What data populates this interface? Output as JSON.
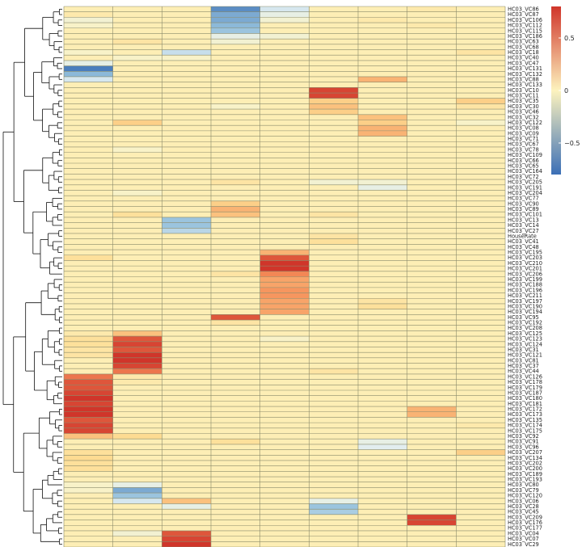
{
  "chart_data": {
    "type": "heatmap",
    "columns": 9,
    "rows": [
      "HC03_VC86",
      "HC03_VC87",
      "HC03_VC106",
      "HC03_VC112",
      "HC03_VC115",
      "HC03_VC186",
      "HC03_VC63",
      "HC03_VC68",
      "HC03_VC18",
      "HC03_VC40",
      "HC03_VC47",
      "HC03_VC131",
      "HC03_VC132",
      "HC03_VC88",
      "HC03_VC133",
      "HC03_VC10",
      "HC03_VC11",
      "HC03_VC35",
      "HC03_VC30",
      "HC03_VC46",
      "HC03_VC32",
      "HC03_VC122",
      "HC03_VC08",
      "HC03_VC09",
      "HC03_VC71",
      "HC03_VC67",
      "HC03_VC78",
      "HC03_VC109",
      "HC03_VC66",
      "HC03_VC65",
      "HC03_VC164",
      "HC03_VC72",
      "HC03_VC205",
      "HC03_VC191",
      "HC03_VC204",
      "HC03_VC77",
      "HC03_VC90",
      "HC03_VC89",
      "HC03_VC101",
      "HC03_VC13",
      "HC03_VC14",
      "HC03_VC27",
      "HouseRate",
      "HC03_VC41",
      "HC03_VC48",
      "HC03_VC195",
      "HC03_VC203",
      "HC03_VC210",
      "HC03_VC201",
      "HC03_VC206",
      "HC03_VC199",
      "HC03_VC188",
      "HC03_VC196",
      "HC03_VC211",
      "HC03_VC197",
      "HC03_VC190",
      "HC03_VC194",
      "HC03_VC95",
      "HC03_VC192",
      "HC03_VC208",
      "HC03_VC125",
      "HC03_VC123",
      "HC03_VC124",
      "HC03_VC31",
      "HC03_VC121",
      "HC03_VC81",
      "HC03_VC37",
      "HC03_VC44",
      "HC03_VC126",
      "HC03_VC178",
      "HC03_VC179",
      "HC03_VC187",
      "HC03_VC180",
      "HC03_VC181",
      "HC03_VC172",
      "HC03_VC173",
      "HC03_VC135",
      "HC03_VC174",
      "HC03_VC175",
      "HC03_VC92",
      "HC03_VC91",
      "HC03_VC96",
      "HC03_VC207",
      "HC03_VC134",
      "HC03_VC202",
      "HC03_VC200",
      "HC03_VC189",
      "HC03_VC193",
      "HC03_VC80",
      "HC03_VC79",
      "HC03_VC120",
      "HC03_VC06",
      "HC03_VC28",
      "HC03_VC45",
      "HC03_VC209",
      "HC03_VC176",
      "HC03_VC177",
      "HC03_VC04",
      "HC03_VC07",
      "HC03_VC29"
    ],
    "values": [
      [
        0.05,
        0.05,
        0.05,
        -0.7,
        -0.3,
        0.05,
        0.05,
        0.1,
        0.05
      ],
      [
        0.1,
        0.05,
        0.05,
        -0.6,
        -0.2,
        0.05,
        0.05,
        0.05,
        0.05
      ],
      [
        -0.1,
        0.05,
        0.05,
        -0.6,
        -0.1,
        0.05,
        0.1,
        0.05,
        0.05
      ],
      [
        -0.05,
        0.05,
        0.05,
        -0.55,
        0.05,
        0.05,
        0.05,
        0.1,
        0.05
      ],
      [
        0.05,
        0.05,
        0.05,
        -0.5,
        0.05,
        0.05,
        0.05,
        0.05,
        0.05
      ],
      [
        0.05,
        0.05,
        0.05,
        -0.2,
        -0.1,
        0.05,
        0.05,
        0.05,
        0.05
      ],
      [
        0.05,
        0.15,
        0.05,
        -0.1,
        0.05,
        0.05,
        0.05,
        0.05,
        0.05
      ],
      [
        0.05,
        0.05,
        0.05,
        0.05,
        0.05,
        0.05,
        0.05,
        0.05,
        0.05
      ],
      [
        -0.05,
        0.05,
        -0.35,
        0.05,
        0.05,
        0.05,
        0.05,
        0.05,
        0.15
      ],
      [
        0.05,
        -0.05,
        -0.05,
        0.05,
        0.05,
        0.05,
        0.05,
        0.05,
        0.05
      ],
      [
        -0.2,
        0.05,
        0.05,
        0.05,
        0.05,
        0.05,
        0.05,
        0.05,
        0.05
      ],
      [
        -0.75,
        0.05,
        0.05,
        0.05,
        0.05,
        0.05,
        0.05,
        0.05,
        0.05
      ],
      [
        -0.55,
        0.05,
        0.05,
        0.05,
        0.05,
        0.05,
        0.05,
        0.05,
        0.05
      ],
      [
        -0.3,
        0.05,
        0.05,
        0.05,
        0.05,
        0.05,
        0.4,
        0.05,
        0.05
      ],
      [
        0.05,
        0.05,
        0.05,
        0.05,
        0.05,
        0.05,
        0.05,
        0.05,
        0.05
      ],
      [
        0.05,
        0.05,
        0.05,
        0.05,
        0.05,
        0.75,
        0.05,
        0.05,
        0.05
      ],
      [
        0.05,
        0.05,
        0.05,
        0.05,
        0.05,
        0.75,
        0.05,
        0.05,
        0.05
      ],
      [
        0.05,
        0.05,
        0.05,
        0.05,
        0.05,
        0.3,
        0.05,
        0.05,
        0.3
      ],
      [
        0.05,
        0.05,
        0.05,
        -0.05,
        0.05,
        0.35,
        0.05,
        0.05,
        0.15
      ],
      [
        0.05,
        0.05,
        0.05,
        0.05,
        0.05,
        0.3,
        0.05,
        0.05,
        0.05
      ],
      [
        0.05,
        0.05,
        0.05,
        0.05,
        0.05,
        0.05,
        0.35,
        0.05,
        0.05
      ],
      [
        0.05,
        0.3,
        0.05,
        0.05,
        0.05,
        0.05,
        0.3,
        0.05,
        -0.05
      ],
      [
        0.05,
        0.05,
        0.05,
        0.05,
        0.05,
        0.05,
        0.4,
        0.05,
        0.05
      ],
      [
        0.05,
        0.05,
        0.05,
        0.05,
        0.05,
        0.05,
        0.4,
        0.05,
        0.05
      ],
      [
        0.05,
        0.05,
        0.05,
        0.05,
        0.05,
        0.05,
        0.05,
        0.05,
        0.05
      ],
      [
        0.05,
        0.05,
        0.05,
        0.05,
        0.05,
        0.05,
        0.05,
        0.05,
        0.05
      ],
      [
        0.05,
        -0.05,
        0.05,
        0.05,
        0.05,
        0.05,
        0.05,
        0.05,
        0.05
      ],
      [
        0.05,
        0.05,
        0.05,
        0.05,
        0.05,
        0.05,
        0.05,
        0.05,
        0.05
      ],
      [
        0.05,
        0.05,
        0.05,
        0.05,
        0.05,
        0.05,
        0.05,
        0.05,
        0.05
      ],
      [
        0.05,
        0.05,
        0.05,
        0.05,
        0.05,
        0.05,
        0.05,
        0.05,
        0.05
      ],
      [
        0.05,
        0.05,
        0.05,
        0.05,
        0.05,
        0.05,
        0.05,
        0.05,
        0.05
      ],
      [
        0.05,
        0.05,
        0.05,
        0.05,
        0.05,
        0.05,
        0.05,
        0.05,
        0.05
      ],
      [
        0.05,
        0.05,
        0.05,
        0.15,
        0.05,
        -0.1,
        -0.1,
        0.05,
        0.05
      ],
      [
        0.05,
        0.05,
        0.05,
        0.05,
        0.05,
        0.05,
        -0.2,
        0.05,
        0.05
      ],
      [
        0.05,
        -0.05,
        0.05,
        0.05,
        0.05,
        0.05,
        0.05,
        0.05,
        0.05
      ],
      [
        0.05,
        0.05,
        0.05,
        0.05,
        0.05,
        0.05,
        0.05,
        0.05,
        0.05
      ],
      [
        0.05,
        0.05,
        0.05,
        0.3,
        0.05,
        0.05,
        0.05,
        0.05,
        0.05
      ],
      [
        0.05,
        0.05,
        0.05,
        0.4,
        0.05,
        0.05,
        0.05,
        0.05,
        0.05
      ],
      [
        0.05,
        0.2,
        0.05,
        0.35,
        0.05,
        0.15,
        0.05,
        0.05,
        0.05
      ],
      [
        0.05,
        0.05,
        -0.5,
        0.05,
        0.05,
        0.05,
        0.05,
        0.05,
        0.05
      ],
      [
        0.05,
        0.05,
        -0.5,
        0.05,
        0.05,
        0.05,
        0.05,
        0.05,
        0.05
      ],
      [
        0.05,
        0.05,
        -0.4,
        0.05,
        0.05,
        0.05,
        0.05,
        0.05,
        0.05
      ],
      [
        0.05,
        0.05,
        0.05,
        0.05,
        0.05,
        0.15,
        0.05,
        0.05,
        0.05
      ],
      [
        0.05,
        0.05,
        0.05,
        0.05,
        0.05,
        0.2,
        0.05,
        0.05,
        0.05
      ],
      [
        0.05,
        0.05,
        0.05,
        0.05,
        0.05,
        0.05,
        0.05,
        0.05,
        0.05
      ],
      [
        0.05,
        0.05,
        0.05,
        0.05,
        0.4,
        0.05,
        0.05,
        0.05,
        0.05
      ],
      [
        0.2,
        0.05,
        0.05,
        0.05,
        0.7,
        0.05,
        0.05,
        0.05,
        0.05
      ],
      [
        0.05,
        0.05,
        0.05,
        0.05,
        0.85,
        0.05,
        0.05,
        0.05,
        0.05
      ],
      [
        0.05,
        0.05,
        0.05,
        0.05,
        0.85,
        0.05,
        0.05,
        0.05,
        0.05
      ],
      [
        0.05,
        0.05,
        0.05,
        0.15,
        0.55,
        0.05,
        0.05,
        0.05,
        0.05
      ],
      [
        0.05,
        0.05,
        0.05,
        0.05,
        0.45,
        0.05,
        0.05,
        0.05,
        0.05
      ],
      [
        0.05,
        0.05,
        0.05,
        0.05,
        0.45,
        0.05,
        0.05,
        0.05,
        0.05
      ],
      [
        0.05,
        0.05,
        0.05,
        0.05,
        0.5,
        0.05,
        0.05,
        0.05,
        0.05
      ],
      [
        0.05,
        0.05,
        0.05,
        0.05,
        0.5,
        0.05,
        0.05,
        0.05,
        0.05
      ],
      [
        0.05,
        0.05,
        0.05,
        0.05,
        0.45,
        0.05,
        0.15,
        0.05,
        0.05
      ],
      [
        0.05,
        0.05,
        0.05,
        0.05,
        0.45,
        0.05,
        0.2,
        0.05,
        0.05
      ],
      [
        0.05,
        0.05,
        0.05,
        0.05,
        0.45,
        0.05,
        0.05,
        0.05,
        0.05
      ],
      [
        0.05,
        0.05,
        0.05,
        0.7,
        0.05,
        0.05,
        0.05,
        0.05,
        0.05
      ],
      [
        0.05,
        0.05,
        0.05,
        0.15,
        0.05,
        0.05,
        0.05,
        0.05,
        0.05
      ],
      [
        0.05,
        0.05,
        0.05,
        0.05,
        0.05,
        0.05,
        0.05,
        0.05,
        0.05
      ],
      [
        0.1,
        0.35,
        0.05,
        0.05,
        0.05,
        0.05,
        0.05,
        0.05,
        0.05
      ],
      [
        0.2,
        0.7,
        0.05,
        0.05,
        -0.05,
        0.05,
        0.05,
        0.05,
        0.05
      ],
      [
        0.2,
        0.75,
        0.05,
        0.05,
        0.05,
        0.05,
        0.05,
        0.05,
        0.05
      ],
      [
        0.15,
        0.7,
        0.05,
        0.05,
        0.05,
        0.05,
        0.05,
        0.05,
        0.05
      ],
      [
        0.15,
        0.8,
        0.05,
        0.05,
        0.05,
        0.05,
        0.05,
        0.05,
        0.05
      ],
      [
        0.05,
        0.8,
        0.05,
        0.05,
        0.05,
        0.05,
        0.05,
        0.05,
        0.05
      ],
      [
        0.05,
        0.75,
        0.05,
        0.05,
        0.05,
        0.05,
        0.05,
        0.05,
        0.05
      ],
      [
        0.05,
        0.6,
        0.05,
        0.05,
        0.05,
        0.15,
        0.05,
        0.05,
        0.05
      ],
      [
        0.6,
        0.1,
        0.05,
        0.05,
        0.05,
        0.05,
        0.05,
        0.05,
        0.05
      ],
      [
        0.7,
        0.1,
        0.05,
        0.05,
        0.05,
        0.05,
        0.05,
        0.05,
        0.05
      ],
      [
        0.7,
        0.05,
        0.05,
        0.05,
        0.05,
        0.05,
        0.05,
        0.05,
        0.05
      ],
      [
        0.75,
        0.05,
        0.05,
        0.05,
        0.05,
        0.05,
        0.05,
        0.05,
        0.05
      ],
      [
        0.8,
        0.05,
        0.05,
        0.05,
        0.05,
        0.05,
        0.05,
        0.05,
        0.05
      ],
      [
        0.75,
        0.05,
        0.05,
        0.05,
        0.05,
        0.05,
        0.05,
        0.05,
        0.05
      ],
      [
        0.8,
        0.05,
        0.05,
        0.05,
        0.05,
        0.05,
        0.05,
        0.4,
        0.05
      ],
      [
        0.8,
        0.05,
        0.05,
        0.05,
        0.05,
        0.05,
        0.05,
        0.4,
        0.05
      ],
      [
        0.7,
        0.05,
        0.05,
        0.05,
        0.05,
        0.05,
        0.05,
        0.05,
        0.05
      ],
      [
        0.75,
        0.05,
        0.05,
        0.05,
        0.05,
        0.05,
        0.05,
        0.05,
        0.1
      ],
      [
        0.75,
        0.05,
        0.05,
        0.05,
        0.05,
        0.05,
        0.05,
        0.05,
        0.05
      ],
      [
        0.35,
        0.25,
        0.05,
        0.05,
        0.05,
        0.05,
        0.05,
        0.05,
        0.05
      ],
      [
        0.05,
        0.05,
        0.05,
        0.2,
        0.05,
        0.05,
        -0.2,
        0.05,
        0.05
      ],
      [
        0.05,
        0.05,
        0.05,
        0.05,
        0.05,
        0.05,
        -0.25,
        0.05,
        0.05
      ],
      [
        0.2,
        0.05,
        0.05,
        0.05,
        0.05,
        0.05,
        0.05,
        0.05,
        0.3
      ],
      [
        0.25,
        0.05,
        0.05,
        0.05,
        0.05,
        0.05,
        0.05,
        0.05,
        0.05
      ],
      [
        0.2,
        0.05,
        0.05,
        0.05,
        0.05,
        0.05,
        0.05,
        0.05,
        0.05
      ],
      [
        0.2,
        0.05,
        0.05,
        0.05,
        0.05,
        0.05,
        0.05,
        0.05,
        0.05
      ],
      [
        0.05,
        0.05,
        0.05,
        0.05,
        0.05,
        0.05,
        0.05,
        0.05,
        0.05
      ],
      [
        0.05,
        0.05,
        0.05,
        0.05,
        0.05,
        0.05,
        0.05,
        0.05,
        0.05
      ],
      [
        -0.05,
        -0.2,
        0.05,
        0.05,
        0.05,
        0.05,
        0.05,
        0.05,
        0.05
      ],
      [
        -0.05,
        -0.6,
        0.05,
        0.05,
        0.05,
        0.05,
        0.05,
        0.05,
        0.05
      ],
      [
        0.05,
        -0.5,
        0.05,
        0.05,
        0.05,
        0.05,
        0.05,
        0.05,
        0.05
      ],
      [
        0.05,
        -0.3,
        0.35,
        0.05,
        0.05,
        -0.2,
        0.05,
        0.05,
        0.05
      ],
      [
        0.05,
        0.05,
        -0.2,
        0.05,
        0.05,
        -0.5,
        0.05,
        0.05,
        0.05
      ],
      [
        0.05,
        0.05,
        0.05,
        0.05,
        0.05,
        -0.45,
        0.05,
        0.05,
        0.05
      ],
      [
        0.05,
        0.05,
        0.05,
        0.05,
        0.05,
        0.05,
        0.05,
        0.75,
        0.05
      ],
      [
        0.05,
        0.05,
        0.05,
        0.05,
        0.05,
        0.05,
        0.05,
        0.75,
        0.05
      ],
      [
        0.05,
        0.05,
        0.05,
        0.05,
        0.05,
        0.05,
        0.05,
        0.05,
        0.05
      ],
      [
        0.05,
        -0.1,
        0.7,
        0.05,
        0.05,
        0.05,
        0.05,
        0.05,
        0.05
      ],
      [
        0.05,
        0.05,
        0.75,
        0.05,
        0.05,
        0.05,
        0.05,
        0.05,
        0.05
      ],
      [
        0.05,
        0.05,
        0.8,
        0.05,
        0.05,
        0.05,
        0.05,
        0.05,
        0.05
      ]
    ],
    "legend": {
      "range": [
        -0.8,
        0.8
      ],
      "ticks": [
        0.5,
        0,
        -0.5
      ],
      "tick_labels": [
        "0.5",
        "0",
        "−0.5"
      ],
      "low_color": "#3B6FB6",
      "mid_color": "#FDF3BE",
      "high_color": "#D0352A"
    },
    "dendrogram": "left"
  }
}
